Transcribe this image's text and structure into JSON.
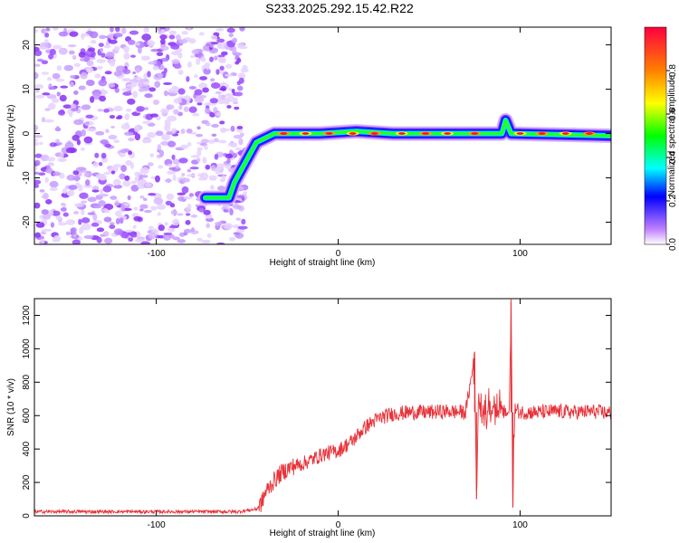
{
  "title": "S233.2025.292.15.42.R22",
  "chart_data": [
    {
      "type": "heatmap",
      "name": "spectrogram",
      "xlabel": "Height of straight line (km)",
      "ylabel": "Frequency (Hz)",
      "xlim": [
        -167,
        150
      ],
      "ylim": [
        -25,
        24
      ],
      "xticks": [
        -100,
        0,
        100
      ],
      "xtick_labels": [
        "-100",
        "0",
        "100"
      ],
      "yticks": [
        -20,
        -10,
        0,
        10,
        20
      ],
      "ytick_labels": [
        "-20",
        "-10",
        "0",
        "10",
        "20"
      ],
      "noise_region_x": [
        -167,
        -55
      ],
      "ridge": [
        {
          "x": -73,
          "y": -14.5
        },
        {
          "x": -60,
          "y": -14.5
        },
        {
          "x": -57,
          "y": -11
        },
        {
          "x": -45,
          "y": -2
        },
        {
          "x": -35,
          "y": 0
        },
        {
          "x": -10,
          "y": 0
        },
        {
          "x": 10,
          "y": 0.5
        },
        {
          "x": 30,
          "y": 0
        },
        {
          "x": 70,
          "y": 0
        },
        {
          "x": 90,
          "y": 0
        },
        {
          "x": 92,
          "y": 3
        },
        {
          "x": 95,
          "y": 0
        },
        {
          "x": 150,
          "y": -0.5
        }
      ],
      "colorbar": {
        "label": "Normalized spectral amplitude",
        "range": [
          0,
          1
        ],
        "ticks": [
          0.0,
          0.2,
          0.4,
          0.6,
          0.8
        ],
        "tick_labels": [
          "0.0",
          "0.2",
          "0.4",
          "0.6",
          "0.8"
        ],
        "colors": [
          "#ffffff",
          "#c080ff",
          "#0000ff",
          "#00ffff",
          "#00ff00",
          "#ffff00",
          "#ff8000",
          "#ff0040"
        ]
      }
    },
    {
      "type": "line",
      "name": "snr",
      "xlabel": "Height of straight line (km)",
      "ylabel": "SNR (10 * v/v)",
      "xlim": [
        -167,
        150
      ],
      "ylim": [
        0,
        1300
      ],
      "xticks": [
        -100,
        0,
        100
      ],
      "xtick_labels": [
        "-100",
        "0",
        "100"
      ],
      "yticks": [
        0,
        200,
        400,
        600,
        800,
        1000,
        1200
      ],
      "ytick_labels": [
        "0",
        "200",
        "400",
        "600",
        "800",
        "1000",
        "1200"
      ],
      "color": "#e8333a",
      "series": [
        {
          "name": "SNR",
          "x": [
            -167,
            -150,
            -130,
            -110,
            -90,
            -70,
            -55,
            -45,
            -42,
            -40,
            -36,
            -32,
            -28,
            -24,
            -20,
            -16,
            -12,
            -8,
            -4,
            0,
            4,
            8,
            12,
            16,
            20,
            24,
            30,
            40,
            50,
            60,
            70,
            75,
            76,
            77,
            80,
            85,
            90,
            94,
            95,
            96,
            97,
            100,
            110,
            120,
            130,
            140,
            150
          ],
          "y": [
            25,
            25,
            25,
            25,
            25,
            25,
            25,
            40,
            80,
            140,
            200,
            250,
            280,
            300,
            310,
            330,
            350,
            370,
            380,
            390,
            420,
            450,
            500,
            540,
            570,
            590,
            610,
            620,
            620,
            625,
            620,
            950,
            100,
            640,
            620,
            640,
            620,
            620,
            1280,
            50,
            640,
            620,
            620,
            625,
            620,
            625,
            615
          ]
        }
      ]
    }
  ]
}
